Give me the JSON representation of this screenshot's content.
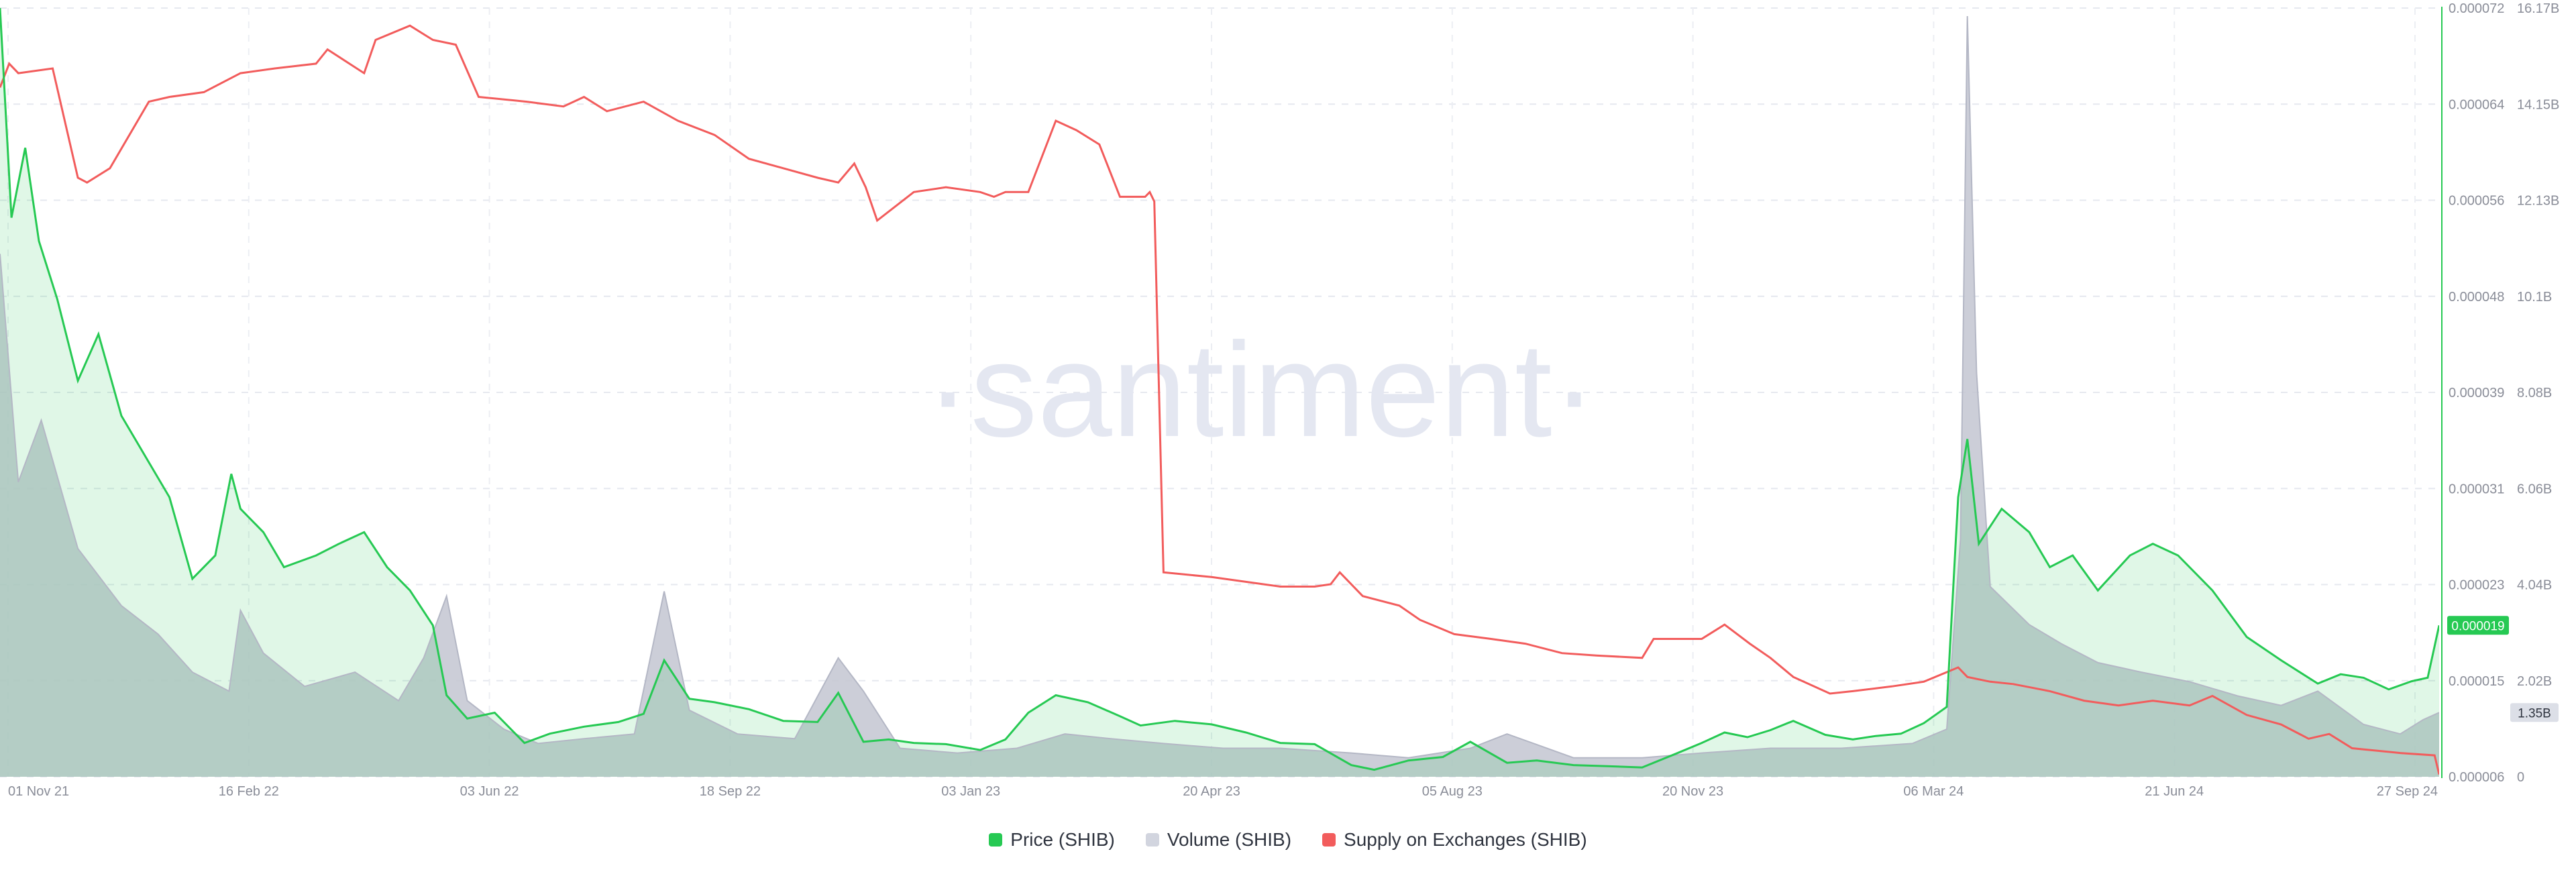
{
  "watermark": "·santiment·",
  "chart_data": {
    "type": "line",
    "x_ticks": [
      "01 Nov 21",
      "16 Feb 22",
      "03 Jun 22",
      "18 Sep 22",
      "03 Jan 23",
      "20 Apr 23",
      "05 Aug 23",
      "20 Nov 23",
      "06 Mar 24",
      "21 Jun 24",
      "27 Sep 24"
    ],
    "x_range": [
      "2021-10-28",
      "2024-09-27"
    ],
    "y_price_ticks": [
      "0.000072",
      "0.000064",
      "0.000056",
      "0.000048",
      "0.000039",
      "0.000031",
      "0.000023",
      "0.000015",
      "0.000006"
    ],
    "y_price_range": [
      6e-06,
      7.2e-05
    ],
    "y_volume_ticks": [
      "16.17B",
      "14.15B",
      "12.13B",
      "10.1B",
      "8.08B",
      "6.06B",
      "4.04B",
      "2.02B",
      "0"
    ],
    "y_volume_range": [
      0,
      16.17
    ],
    "current_price_label": "0.000019",
    "current_volume_label": "1.35B",
    "grid": true,
    "legend_position": "bottom",
    "series": [
      {
        "name": "Price (SHIB)",
        "color": "#26c953",
        "x": [
          "2021-10-28",
          "2021-11-02",
          "2021-11-08",
          "2021-11-14",
          "2021-11-22",
          "2021-12-01",
          "2021-12-10",
          "2021-12-20",
          "2022-01-01",
          "2022-01-10",
          "2022-01-20",
          "2022-01-30",
          "2022-02-06",
          "2022-02-10",
          "2022-02-20",
          "2022-03-01",
          "2022-03-15",
          "2022-03-25",
          "2022-04-05",
          "2022-04-15",
          "2022-04-25",
          "2022-05-05",
          "2022-05-11",
          "2022-05-20",
          "2022-06-01",
          "2022-06-14",
          "2022-06-25",
          "2022-07-10",
          "2022-07-25",
          "2022-08-05",
          "2022-08-14",
          "2022-08-25",
          "2022-09-05",
          "2022-09-20",
          "2022-10-05",
          "2022-10-20",
          "2022-10-29",
          "2022-11-09",
          "2022-11-20",
          "2022-12-01",
          "2022-12-15",
          "2022-12-30",
          "2023-01-10",
          "2023-01-20",
          "2023-02-01",
          "2023-02-15",
          "2023-03-01",
          "2023-03-10",
          "2023-03-25",
          "2023-04-10",
          "2023-04-25",
          "2023-05-10",
          "2023-05-25",
          "2023-06-10",
          "2023-06-20",
          "2023-07-05",
          "2023-07-20",
          "2023-08-01",
          "2023-08-17",
          "2023-08-30",
          "2023-09-15",
          "2023-10-01",
          "2023-10-15",
          "2023-10-30",
          "2023-11-10",
          "2023-11-20",
          "2023-11-30",
          "2023-12-10",
          "2023-12-20",
          "2024-01-03",
          "2024-01-15",
          "2024-01-25",
          "2024-02-05",
          "2024-02-15",
          "2024-02-25",
          "2024-03-01",
          "2024-03-05",
          "2024-03-10",
          "2024-03-20",
          "2024-04-01",
          "2024-04-10",
          "2024-04-20",
          "2024-05-01",
          "2024-05-15",
          "2024-05-25",
          "2024-06-05",
          "2024-06-20",
          "2024-07-05",
          "2024-07-20",
          "2024-08-05",
          "2024-08-15",
          "2024-08-25",
          "2024-09-05",
          "2024-09-15",
          "2024-09-22",
          "2024-09-27"
        ],
        "values": [
          7.2e-05,
          5.4e-05,
          6e-05,
          5.2e-05,
          4.7e-05,
          4e-05,
          4.4e-05,
          3.7e-05,
          3.3e-05,
          3e-05,
          2.3e-05,
          2.5e-05,
          3.2e-05,
          2.9e-05,
          2.7e-05,
          2.4e-05,
          2.5e-05,
          2.6e-05,
          2.7e-05,
          2.4e-05,
          2.2e-05,
          1.9e-05,
          1.3e-05,
          1.1e-05,
          1.15e-05,
          8.9e-06,
          9.7e-06,
          1.03e-05,
          1.07e-05,
          1.14e-05,
          1.6e-05,
          1.27e-05,
          1.24e-05,
          1.18e-05,
          1.08e-05,
          1.07e-05,
          1.32e-05,
          9e-06,
          9.2e-06,
          8.9e-06,
          8.8e-06,
          8.3e-06,
          9.2e-06,
          1.15e-05,
          1.3e-05,
          1.24e-05,
          1.12e-05,
          1.04e-05,
          1.08e-05,
          1.05e-05,
          9.8e-06,
          8.9e-06,
          8.8e-06,
          7e-06,
          6.6e-06,
          7.4e-06,
          7.7e-06,
          9e-06,
          7.2e-06,
          7.4e-06,
          7e-06,
          6.9e-06,
          6.8e-06,
          8e-06,
          8.9e-06,
          9.8e-06,
          9.4e-06,
          1e-05,
          1.08e-05,
          9.6e-06,
          9.2e-06,
          9.5e-06,
          9.7e-06,
          1.06e-05,
          1.2e-05,
          3e-05,
          3.5e-05,
          2.6e-05,
          2.9e-05,
          2.7e-05,
          2.4e-05,
          2.5e-05,
          2.2e-05,
          2.5e-05,
          2.6e-05,
          2.5e-05,
          2.2e-05,
          1.8e-05,
          1.6e-05,
          1.4e-05,
          1.48e-05,
          1.45e-05,
          1.35e-05,
          1.42e-05,
          1.45e-05,
          1.9e-05
        ]
      },
      {
        "name": "Volume (SHIB)",
        "color": "#b9bcc9",
        "x": [
          "2021-10-28",
          "2021-11-05",
          "2021-11-15",
          "2021-12-01",
          "2021-12-20",
          "2022-01-05",
          "2022-01-20",
          "2022-02-05",
          "2022-02-10",
          "2022-02-20",
          "2022-03-10",
          "2022-04-01",
          "2022-04-20",
          "2022-05-01",
          "2022-05-11",
          "2022-05-20",
          "2022-06-05",
          "2022-06-20",
          "2022-07-10",
          "2022-08-01",
          "2022-08-14",
          "2022-08-25",
          "2022-09-15",
          "2022-10-10",
          "2022-10-29",
          "2022-11-09",
          "2022-11-25",
          "2022-12-20",
          "2023-01-15",
          "2023-02-05",
          "2023-02-25",
          "2023-03-20",
          "2023-04-15",
          "2023-05-10",
          "2023-06-10",
          "2023-07-05",
          "2023-08-01",
          "2023-08-17",
          "2023-09-15",
          "2023-10-15",
          "2023-11-10",
          "2023-12-10",
          "2024-01-10",
          "2024-02-10",
          "2024-02-25",
          "2024-03-02",
          "2024-03-05",
          "2024-03-09",
          "2024-03-15",
          "2024-04-01",
          "2024-04-15",
          "2024-05-01",
          "2024-05-20",
          "2024-06-10",
          "2024-07-01",
          "2024-07-20",
          "2024-08-05",
          "2024-08-25",
          "2024-09-10",
          "2024-09-20",
          "2024-09-27"
        ],
        "values": [
          11.0,
          6.2,
          7.5,
          4.8,
          3.6,
          3.0,
          2.2,
          1.8,
          3.5,
          2.6,
          1.9,
          2.2,
          1.6,
          2.5,
          3.8,
          1.6,
          1.0,
          0.7,
          0.8,
          0.9,
          3.9,
          1.4,
          0.9,
          0.8,
          2.5,
          1.8,
          0.6,
          0.5,
          0.6,
          0.9,
          0.8,
          0.7,
          0.6,
          0.6,
          0.5,
          0.4,
          0.6,
          0.9,
          0.4,
          0.4,
          0.5,
          0.6,
          0.6,
          0.7,
          1.0,
          5.0,
          16.0,
          8.5,
          4.0,
          3.2,
          2.8,
          2.4,
          2.2,
          2.0,
          1.7,
          1.5,
          1.8,
          1.1,
          0.9,
          1.2,
          1.35
        ]
      },
      {
        "name": "Supply on Exchanges (SHIB)",
        "color": "#f25c5c",
        "x": [
          "2021-10-28",
          "2021-11-01",
          "2021-11-05",
          "2021-11-20",
          "2021-12-01",
          "2021-12-05",
          "2021-12-15",
          "2022-01-01",
          "2022-01-10",
          "2022-01-25",
          "2022-02-10",
          "2022-02-25",
          "2022-03-15",
          "2022-03-20",
          "2022-04-05",
          "2022-04-10",
          "2022-04-25",
          "2022-05-05",
          "2022-05-15",
          "2022-05-25",
          "2022-06-15",
          "2022-07-01",
          "2022-07-10",
          "2022-07-20",
          "2022-08-05",
          "2022-08-20",
          "2022-09-05",
          "2022-09-20",
          "2022-10-05",
          "2022-10-20",
          "2022-10-29",
          "2022-11-05",
          "2022-11-10",
          "2022-11-15",
          "2022-12-01",
          "2022-12-15",
          "2022-12-30",
          "2023-01-05",
          "2023-01-10",
          "2023-01-20",
          "2023-02-01",
          "2023-02-10",
          "2023-02-20",
          "2023-03-01",
          "2023-03-12",
          "2023-03-14",
          "2023-03-16",
          "2023-03-20",
          "2023-04-10",
          "2023-04-25",
          "2023-05-10",
          "2023-05-25",
          "2023-06-01",
          "2023-06-05",
          "2023-06-15",
          "2023-07-01",
          "2023-07-10",
          "2023-07-25",
          "2023-08-10",
          "2023-08-25",
          "2023-09-10",
          "2023-09-25",
          "2023-10-15",
          "2023-10-20",
          "2023-11-10",
          "2023-11-20",
          "2023-12-01",
          "2023-12-10",
          "2023-12-20",
          "2024-01-05",
          "2024-01-15",
          "2024-02-01",
          "2024-02-15",
          "2024-03-01",
          "2024-03-05",
          "2024-03-15",
          "2024-03-25",
          "2024-04-10",
          "2024-04-25",
          "2024-05-10",
          "2024-05-25",
          "2024-06-10",
          "2024-06-20",
          "2024-07-05",
          "2024-07-20",
          "2024-08-01",
          "2024-08-10",
          "2024-08-20",
          "2024-09-10",
          "2024-09-25",
          "2024-09-27"
        ],
        "values": [
          14.5,
          15.0,
          14.8,
          14.9,
          12.6,
          12.5,
          12.8,
          14.2,
          14.3,
          14.4,
          14.8,
          14.9,
          15.0,
          15.3,
          14.8,
          15.5,
          15.8,
          15.5,
          15.4,
          14.3,
          14.2,
          14.1,
          14.3,
          14.0,
          14.2,
          13.8,
          13.5,
          13.0,
          12.8,
          12.6,
          12.5,
          12.9,
          12.4,
          11.7,
          12.3,
          12.4,
          12.3,
          12.2,
          12.3,
          12.3,
          13.8,
          13.6,
          13.3,
          12.2,
          12.2,
          12.3,
          12.1,
          4.3,
          4.2,
          4.1,
          4.0,
          4.0,
          4.05,
          4.3,
          3.8,
          3.6,
          3.3,
          3.0,
          2.9,
          2.8,
          2.6,
          2.55,
          2.5,
          2.9,
          2.9,
          3.2,
          2.8,
          2.5,
          2.1,
          1.75,
          1.8,
          1.9,
          2.0,
          2.3,
          2.1,
          2.0,
          1.95,
          1.8,
          1.6,
          1.5,
          1.6,
          1.5,
          1.7,
          1.3,
          1.1,
          0.8,
          0.9,
          0.6,
          0.5,
          0.45,
          0.05
        ]
      }
    ]
  }
}
